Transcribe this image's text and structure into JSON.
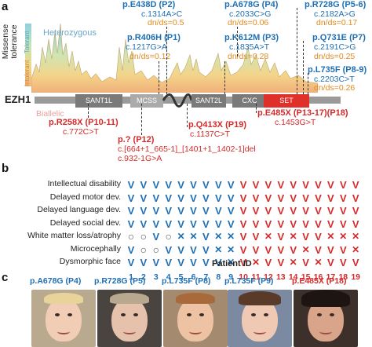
{
  "panel_a": {
    "letter": "a",
    "y_label_line1": "Missense",
    "y_label_line2": "tolerance",
    "scale_tolerant": "Tolerant",
    "scale_intolerant": "Intolerant",
    "heterozygous": "Heterozygous",
    "biallelic": "Biallelic",
    "gene": "EZH1",
    "domains": [
      "SANT1L",
      "MCSS",
      "SANT2L",
      "CXC",
      "SET"
    ],
    "variants": {
      "e438d": {
        "name": "p.E438D (P2)",
        "cdna": "c.1314A>C",
        "dnds": "dn/ds=0.5"
      },
      "a678g": {
        "name": "p.A678G (P4)",
        "cdna": "c.2033C>G",
        "dnds": "dn/ds=0.06"
      },
      "r728g": {
        "name": "p.R728G (P5-6)",
        "cdna": "c.2182A>G",
        "dnds": "dn/ds=0.17"
      },
      "r406h": {
        "name": "p.R406H (P1)",
        "cdna": "c.1217G>A",
        "dnds": "dn/ds=0.12"
      },
      "k612m": {
        "name": "p.K612M (P3)",
        "cdna": "c.1835A>T",
        "dnds": "dn/ds=0.28"
      },
      "q731e": {
        "name": "p.Q731E (P7)",
        "cdna": "c.2191C>G",
        "dnds": "dn/ds=0.25"
      },
      "l735f": {
        "name": "p.L735F (P8-9)",
        "cdna": "c.2203C>T",
        "dnds": "dn/ds=0.26"
      },
      "r258x": {
        "name": "p.R258X (P10-11)",
        "cdna": "c.772C>T"
      },
      "splice": {
        "name": "p.? (P12)",
        "cdna1": "c.[664+1_665-1]_[1401+1_1402-1]del",
        "cdna2": "c.932-1G>A"
      },
      "q413x": {
        "name": "p.Q413X (P19)",
        "cdna": "c.1137C>T"
      },
      "e485x": {
        "name": "p.E485X (P13-17)(P18)",
        "cdna": "c.1453G>T"
      }
    }
  },
  "panel_b": {
    "letter": "b",
    "traits": [
      "Intellectual disability",
      "Delayed motor dev.",
      "Delayed language dev.",
      "Delayed social dev.",
      "White matter loss/atrophy",
      "Microcephally",
      "Dysmorphic face"
    ],
    "matrix": [
      [
        "V",
        "V",
        "V",
        "V",
        "V",
        "V",
        "V",
        "V",
        "V",
        "V",
        "V",
        "V",
        "V",
        "V",
        "V",
        "V",
        "V",
        "V",
        "V"
      ],
      [
        "V",
        "V",
        "V",
        "V",
        "V",
        "V",
        "V",
        "V",
        "V",
        "V",
        "V",
        "V",
        "V",
        "V",
        "V",
        "V",
        "V",
        "V",
        "V"
      ],
      [
        "V",
        "V",
        "V",
        "V",
        "V",
        "V",
        "V",
        "V",
        "V",
        "V",
        "V",
        "V",
        "V",
        "V",
        "V",
        "V",
        "V",
        "V",
        "V"
      ],
      [
        "V",
        "V",
        "V",
        "V",
        "V",
        "V",
        "V",
        "V",
        "V",
        "V",
        "V",
        "V",
        "V",
        "V",
        "V",
        "V",
        "V",
        "V",
        "V"
      ],
      [
        "O",
        "O",
        "V",
        "O",
        "X",
        "X",
        "V",
        "X",
        "X",
        "V",
        "V",
        "X",
        "V",
        "X",
        "V",
        "V",
        "X",
        "X",
        "X"
      ],
      [
        "V",
        "O",
        "O",
        "V",
        "V",
        "V",
        "V",
        "X",
        "X",
        "V",
        "V",
        "V",
        "V",
        "V",
        "X",
        "V",
        "V",
        "V",
        "X"
      ],
      [
        "V",
        "V",
        "V",
        "V",
        "V",
        "V",
        "V",
        "V",
        "X",
        "V",
        "X",
        "V",
        "V",
        "X",
        "V",
        "X",
        "V",
        "V",
        "V"
      ]
    ],
    "patients": [
      "1",
      "2",
      "3",
      "4",
      "5",
      "6",
      "7",
      "8",
      "9",
      "10",
      "11",
      "12",
      "13",
      "14",
      "15",
      "16",
      "17",
      "18",
      "19"
    ],
    "x_label": "Patient ID"
  },
  "panel_c": {
    "letter": "c",
    "photos": [
      {
        "label": "p.A678G (P4)"
      },
      {
        "label": "p.R728G (P5)"
      },
      {
        "label": "p.L735F (P8)"
      },
      {
        "label": "p.L735F (P9)"
      },
      {
        "label": "p.E485X (P18)"
      }
    ]
  },
  "colors": {
    "blue": "#1f6fb4",
    "red": "#d62a2a",
    "orange": "#e08a1e",
    "domain": "#7a7a7a",
    "set": "#e0302a"
  }
}
